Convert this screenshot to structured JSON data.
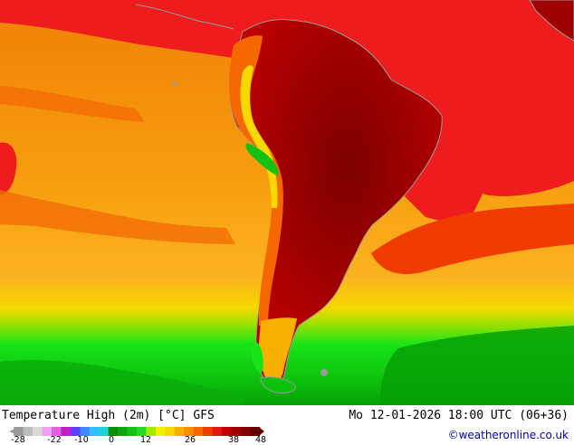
{
  "map": {
    "title": "Temperature High (2m) [°C] GFS",
    "run_time": "Mo 12-01-2026 18:00 UTC (06+36)",
    "copyright": "©weatheronline.co.uk",
    "region": "South America",
    "colors": {
      "ocean_orange": "#f79e0e",
      "ocean_light_orange": "#fbb21f",
      "ocean_dark_orange": "#f08008",
      "red": "#ee1c1c",
      "dark_red": "#a50000",
      "deep_red": "#7c0000",
      "yellow": "#f3f300",
      "green_bright": "#17e417",
      "green": "#0dc10d",
      "green_dark": "#06a006",
      "coast": "#9a9a9a"
    }
  },
  "legend": {
    "tick_labels": [
      "-28",
      "-22",
      "-10",
      "0",
      "12",
      "26",
      "38",
      "48"
    ],
    "colors": [
      "#9a9a9a",
      "#bdbdbd",
      "#d9d9d9",
      "#f0a0f0",
      "#e060e0",
      "#c020c0",
      "#6040ff",
      "#3f86ff",
      "#30c0ff",
      "#1dd5d5",
      "#0a8c0a",
      "#0ea50e",
      "#14c014",
      "#28d828",
      "#a8e800",
      "#f2f200",
      "#f9d800",
      "#f7b000",
      "#f79000",
      "#f56800",
      "#f03c00",
      "#e81414",
      "#c40000",
      "#a00000",
      "#800000",
      "#5e0000"
    ]
  }
}
